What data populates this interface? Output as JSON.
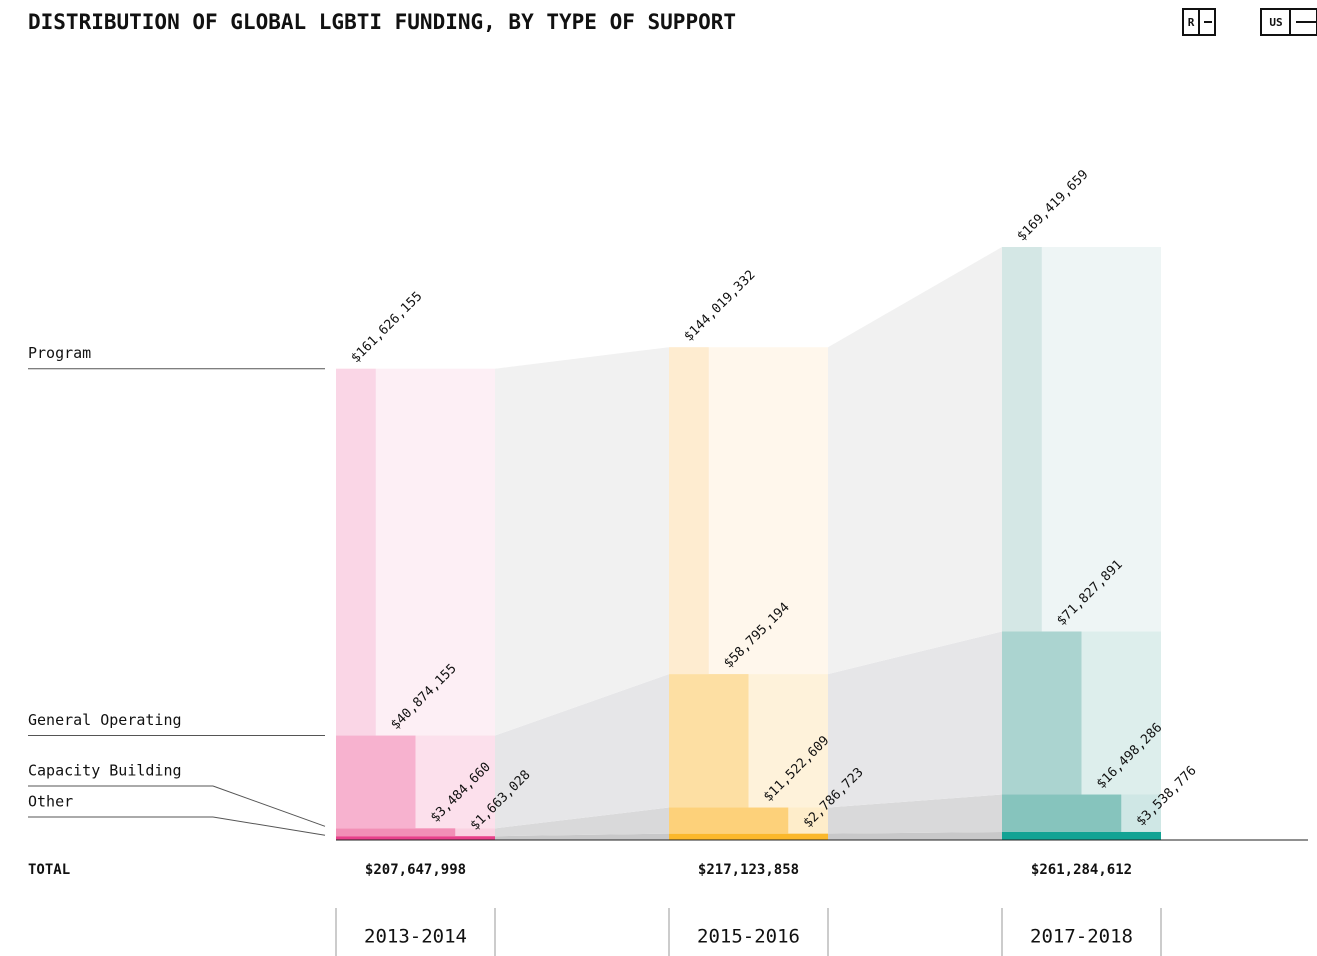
{
  "chart_data": {
    "type": "stepped-stacked-bar",
    "title": "DISTRIBUTION OF GLOBAL LGBTI FUNDING, BY TYPE OF SUPPORT",
    "logos": [
      "R",
      "US"
    ],
    "categories": [
      "2013-2014",
      "2015-2016",
      "2017-2018"
    ],
    "series": [
      {
        "name": "Program",
        "colors": [
          "#fad6e6",
          "#feecd0",
          "#d4e7e5"
        ],
        "connector_color": "#f1f1f1",
        "values": [
          161626155,
          144019332,
          169419659
        ],
        "value_labels": [
          "$161,626,155",
          "$144,019,332",
          "$169,419,659"
        ]
      },
      {
        "name": "General Operating",
        "colors": [
          "#f7b2cf",
          "#fddfa3",
          "#abd4d0"
        ],
        "connector_color": "#e6e6e8",
        "values": [
          40874155,
          58795194,
          71827891
        ],
        "value_labels": [
          "$40,874,155",
          "$58,795,194",
          "$71,827,891"
        ]
      },
      {
        "name": "Capacity Building",
        "colors": [
          "#f28fb6",
          "#fdd17a",
          "#86c4bd"
        ],
        "connector_color": "#d9d9da",
        "values": [
          3484660,
          11522609,
          16498286
        ],
        "value_labels": [
          "$3,484,660",
          "$11,522,609",
          "$16,498,286"
        ]
      },
      {
        "name": "Other",
        "colors": [
          "#e8408a",
          "#fbb82b",
          "#12a394"
        ],
        "connector_color": "#c8c8c9",
        "values": [
          1663028,
          2786723,
          3538776
        ],
        "value_labels": [
          "$1,663,028",
          "$2,786,723",
          "$3,538,776"
        ]
      }
    ],
    "totals": {
      "label": "TOTAL",
      "values": [
        207647998,
        217123858,
        261284612
      ],
      "value_labels": [
        "$207,647,998",
        "$217,123,858",
        "$261,284,612"
      ]
    }
  }
}
